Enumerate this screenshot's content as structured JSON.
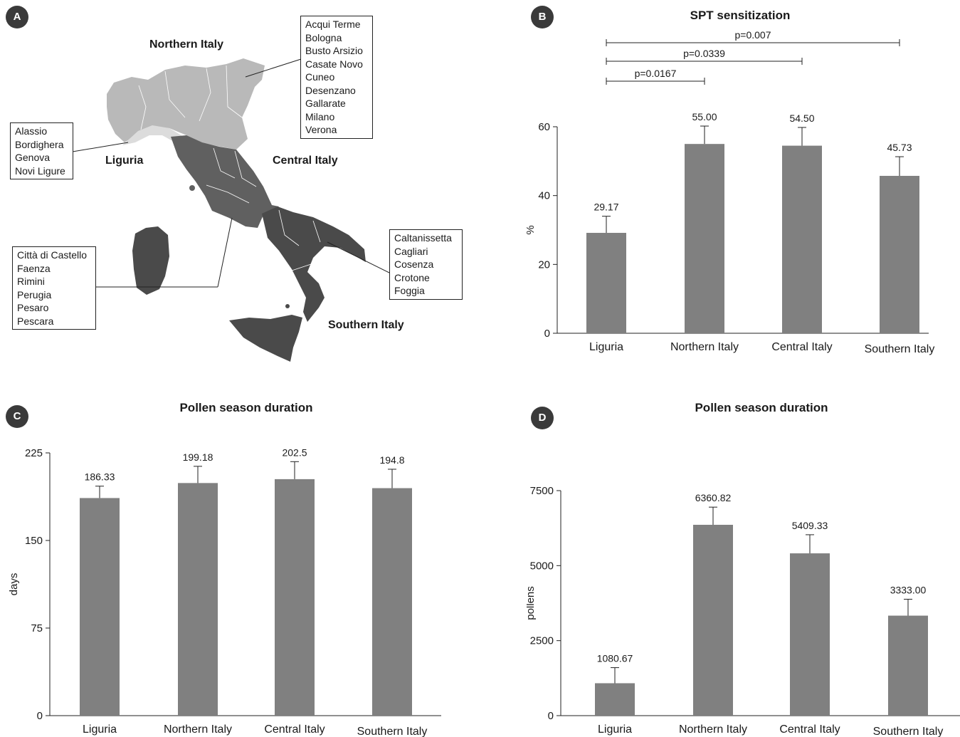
{
  "panels": {
    "A": {
      "badge": "A",
      "regions": {
        "northern": "Northern Italy",
        "liguria": "Liguria",
        "central": "Central Italy",
        "southern": "Southern Italy"
      },
      "city_lists": {
        "northern": [
          "Acqui Terme",
          "Bologna",
          "Busto Arsizio",
          "Casate Novo",
          "Cuneo",
          "Desenzano",
          "Gallarate",
          "Milano",
          "Verona"
        ],
        "liguria": [
          "Alassio",
          "Bordighera",
          "Genova",
          "Novi Ligure"
        ],
        "central": [
          "Città di Castello",
          "Faenza",
          "Rimini",
          "Perugia",
          "Pesaro",
          "Pescara"
        ],
        "southern": [
          "Caltanissetta",
          "Cagliari",
          "Cosenza",
          "Crotone",
          "Foggia"
        ]
      },
      "colors": {
        "northern": "#b9b9b9",
        "liguria": "#dcdcdc",
        "central": "#606060",
        "southern": "#4a4a4a"
      }
    },
    "B": {
      "badge": "B",
      "title": "SPT sensitization"
    },
    "C": {
      "badge": "C",
      "title": "Pollen season duration"
    },
    "D": {
      "badge": "D",
      "title": "Pollen season duration"
    }
  },
  "chart_data": [
    {
      "panel": "B",
      "type": "bar",
      "title": "SPT sensitization",
      "ylabel": "%",
      "categories": [
        "Liguria",
        "Northern Italy",
        "Central Italy",
        "Southern Italy"
      ],
      "values": [
        29.17,
        55.0,
        54.5,
        45.73
      ],
      "value_labels": [
        "29.17",
        "55.00",
        "54.50",
        "45.73"
      ],
      "error_upper": [
        34.0,
        60.2,
        59.8,
        51.3
      ],
      "ylim": [
        0,
        60
      ],
      "yticks": [
        0,
        20,
        40,
        60
      ],
      "bar_color": "#808080",
      "significance": [
        {
          "from": "Liguria",
          "to": "Northern Italy",
          "label": "p=0.0167"
        },
        {
          "from": "Liguria",
          "to": "Central Italy",
          "label": "p=0.0339"
        },
        {
          "from": "Liguria",
          "to": "Southern Italy",
          "label": "p=0.007"
        }
      ]
    },
    {
      "panel": "C",
      "type": "bar",
      "title": "Pollen season duration",
      "ylabel": "days",
      "categories": [
        "Liguria",
        "Northern Italy",
        "Central Italy",
        "Southern Italy"
      ],
      "values": [
        186.33,
        199.18,
        202.5,
        194.8
      ],
      "value_labels": [
        "186.33",
        "199.18",
        "202.5",
        "194.8"
      ],
      "error_upper": [
        196.5,
        213.5,
        217.5,
        211.0
      ],
      "ylim": [
        0,
        225
      ],
      "yticks": [
        0,
        75,
        150,
        225
      ],
      "bar_color": "#808080"
    },
    {
      "panel": "D",
      "type": "bar",
      "title": "Pollen season duration",
      "ylabel": "pollens",
      "categories": [
        "Liguria",
        "Northern Italy",
        "Central Italy",
        "Southern Italy"
      ],
      "values": [
        1080.67,
        6360.82,
        5409.33,
        3333.0
      ],
      "value_labels": [
        "1080.67",
        "6360.82",
        "5409.33",
        "3333.00"
      ],
      "error_upper": [
        1600,
        6950,
        6030,
        3880
      ],
      "ylim": [
        0,
        7500
      ],
      "yticks": [
        0,
        2500,
        5000,
        7500
      ],
      "bar_color": "#808080"
    }
  ]
}
